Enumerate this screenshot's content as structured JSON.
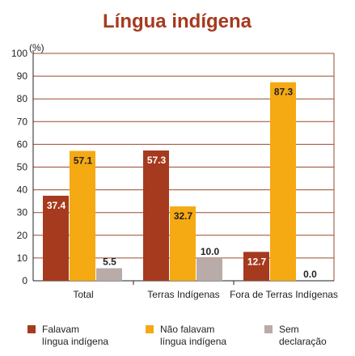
{
  "chart_data": {
    "type": "bar",
    "title": "Língua indígena",
    "yunit": "(%)",
    "ylim": [
      0,
      100
    ],
    "yticks": [
      0,
      10,
      20,
      30,
      40,
      50,
      60,
      70,
      80,
      90,
      100
    ],
    "grid": true,
    "categories": [
      "Total",
      "Terras Indígenas",
      "Fora de Terras Indígenas"
    ],
    "series": [
      {
        "name": "Falavam língua indígena",
        "values": [
          37.4,
          57.3,
          12.7
        ],
        "color": "#a63a1e"
      },
      {
        "name": "Não falavam língua indígena",
        "values": [
          57.1,
          32.7,
          87.3
        ],
        "color": "#f5a913"
      },
      {
        "name": "Sem declaração",
        "values": [
          5.5,
          10.0,
          0.0
        ],
        "color": "#b8aba8"
      }
    ],
    "value_labels": [
      [
        "37.4",
        "57.3",
        "12.7"
      ],
      [
        "57.1",
        "32.7",
        "87.3"
      ],
      [
        "5.5",
        "10.0",
        "0.0"
      ]
    ]
  },
  "legend": [
    {
      "line1": "Falavam",
      "line2": "língua indígena"
    },
    {
      "line1": "Não falavam",
      "line2": "língua indígena"
    },
    {
      "line1": "Sem",
      "line2": "declaração"
    }
  ],
  "colors": {
    "title": "#a63a1e",
    "grid": "#9b4a2e",
    "axis": "#222222"
  }
}
